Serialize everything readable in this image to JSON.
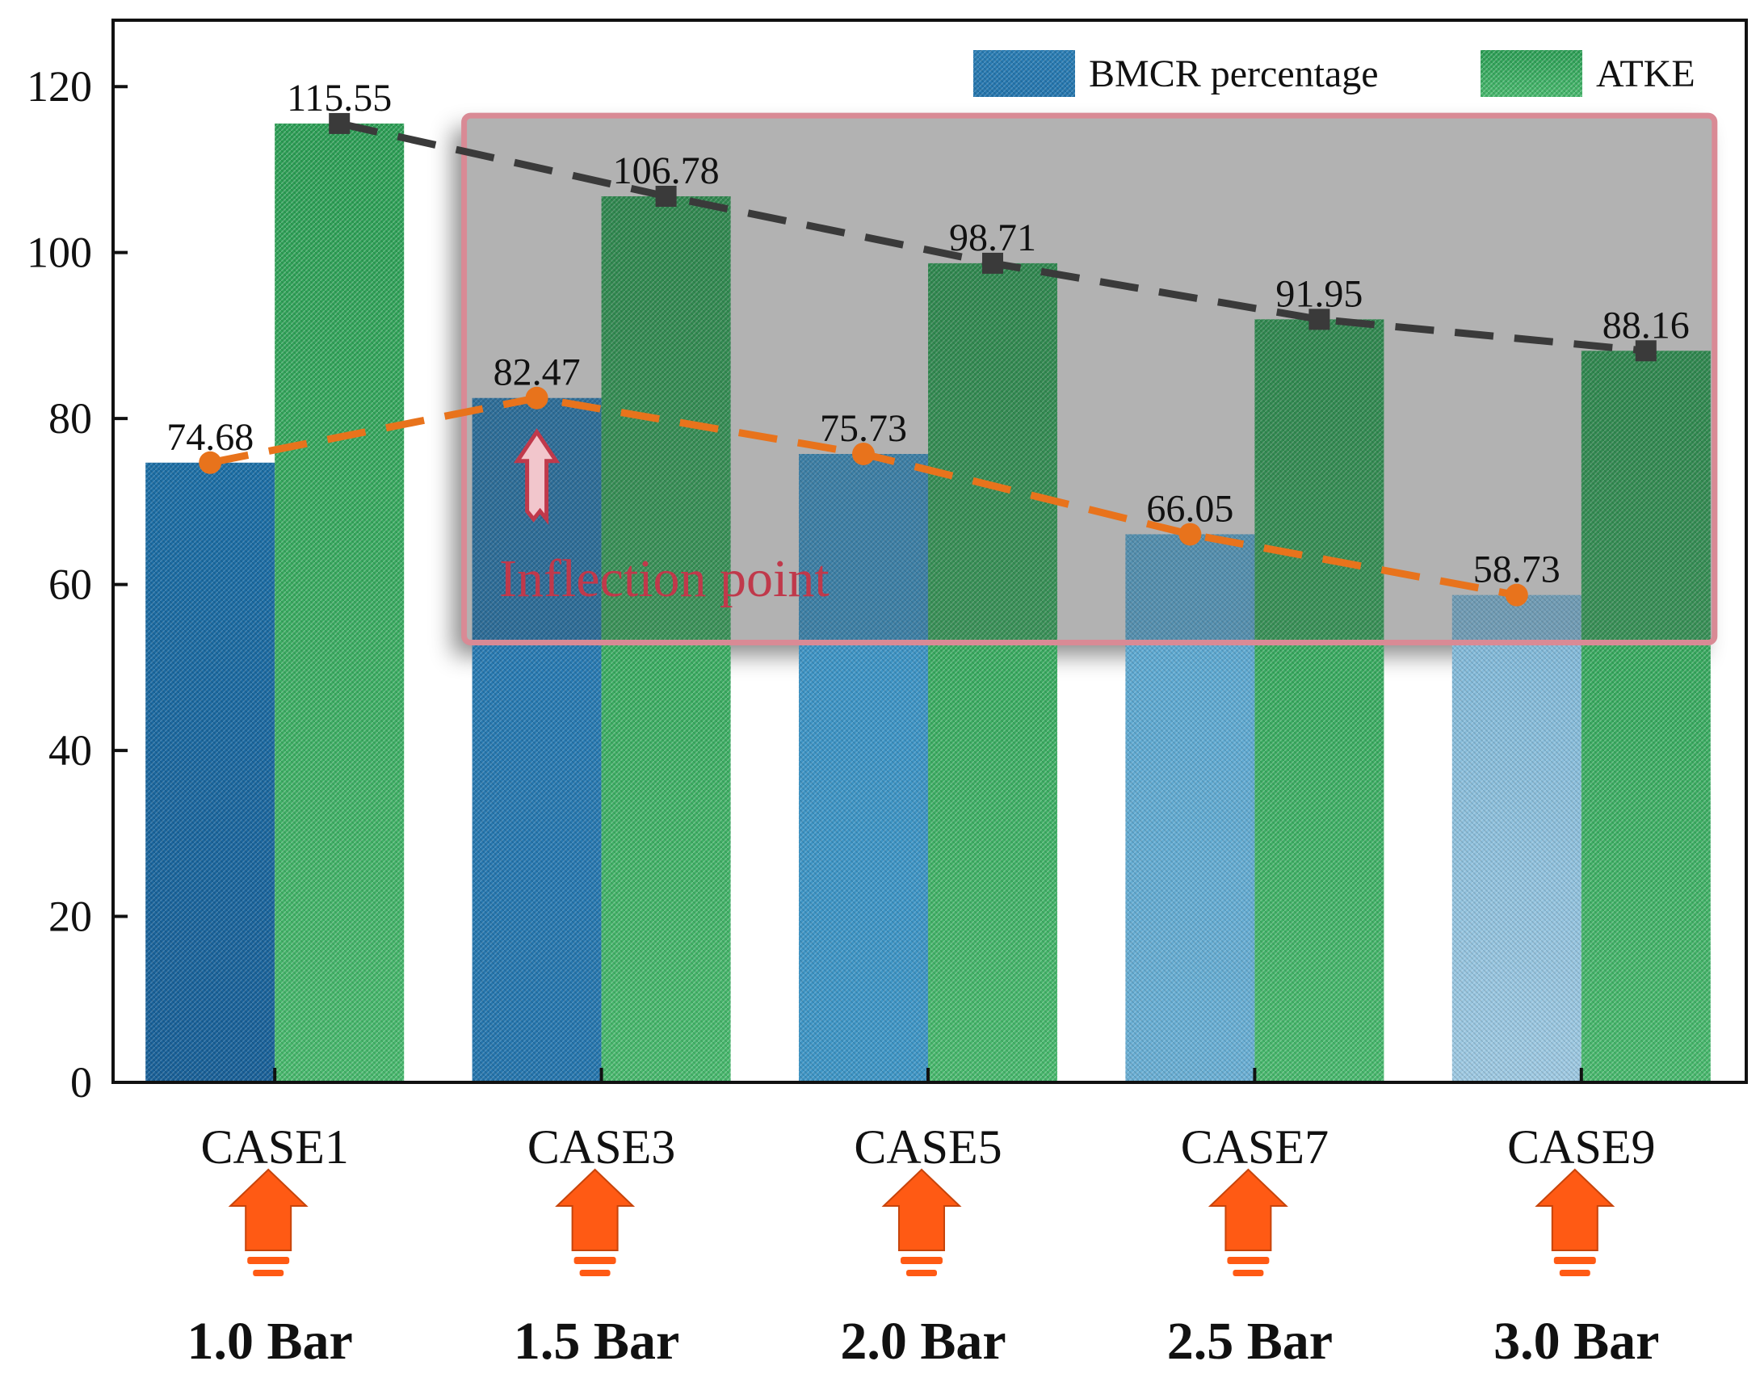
{
  "chart_data": {
    "type": "bar",
    "categories": [
      "CASE1",
      "CASE3",
      "CASE5",
      "CASE7",
      "CASE9"
    ],
    "series": [
      {
        "name": "BMCR percentage",
        "values": [
          74.68,
          82.47,
          75.73,
          66.05,
          58.73
        ],
        "color": "#2a7fb8"
      },
      {
        "name": "ATKE",
        "values": [
          115.55,
          106.78,
          98.71,
          91.95,
          88.16
        ],
        "color": "#2fa85a"
      }
    ],
    "value_labels": {
      "bmcr": [
        "74.68",
        "82.47",
        "75.73",
        "66.05",
        "58.73"
      ],
      "atke": [
        "115.55",
        "106.78",
        "98.71",
        "91.95",
        "88.16"
      ]
    },
    "trend_lines": [
      {
        "series": "BMCR percentage",
        "color": "#e8731c",
        "style": "dashed",
        "marker": "circle"
      },
      {
        "series": "ATKE",
        "color": "#3a3a3a",
        "style": "dashed",
        "marker": "square"
      }
    ],
    "y_ticks": [
      "0",
      "20",
      "40",
      "60",
      "80",
      "100",
      "120"
    ],
    "ylim": [
      0,
      128
    ],
    "legend": {
      "position": "top-right",
      "entries": [
        "BMCR percentage",
        "ATKE"
      ]
    },
    "annotation": {
      "text": "Inflection point",
      "color": "#c0394b",
      "target_category": "CASE3"
    },
    "highlight_box": {
      "from_category": "CASE3",
      "to_category": "CASE9",
      "y_range": [
        53,
        116.5
      ],
      "color": "#d98a95"
    },
    "pressures": [
      "1.0 Bar",
      "1.5 Bar",
      "2.0 Bar",
      "2.5 Bar",
      "3.0 Bar"
    ],
    "arrow_color": "#ff5a14",
    "title": "",
    "xlabel": "",
    "ylabel": ""
  }
}
